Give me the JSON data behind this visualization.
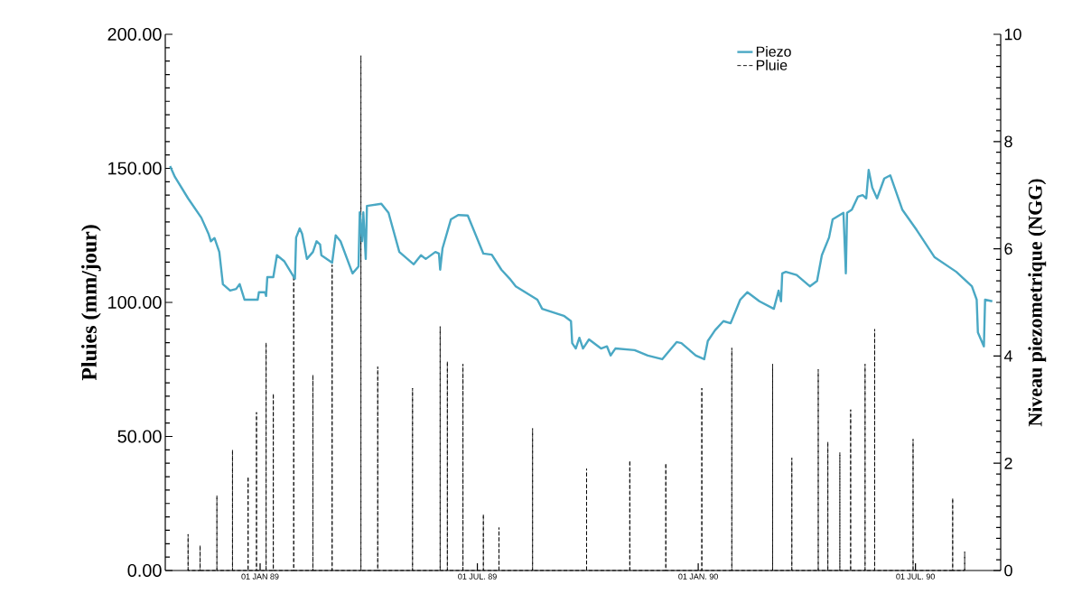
{
  "chart_data": {
    "type": "line",
    "xlabel": null,
    "ylabel": "Pluies (mm/jour)",
    "y2label": "Niveau piezometrique (NGG)",
    "xlim": [
      "1988-10-14",
      "1990-09-10"
    ],
    "xticks": [
      {
        "value": "1989-01-01",
        "label": "01 JAN 89"
      },
      {
        "value": "1989-07-01",
        "label": "01 JUL. 89"
      },
      {
        "value": "1990-01-01",
        "label": "01 JAN. 90"
      },
      {
        "value": "1990-07-01",
        "label": "01 JUL. 90"
      }
    ],
    "ylim": [
      0,
      200
    ],
    "yticks": [
      {
        "value": 0,
        "label": "0.00"
      },
      {
        "value": 50,
        "label": "50.00"
      },
      {
        "value": 100,
        "label": "100.00"
      },
      {
        "value": 150,
        "label": "150.00"
      },
      {
        "value": 200,
        "label": "200.00"
      }
    ],
    "y2lim": [
      0,
      10
    ],
    "y2ticks": [
      0,
      2,
      4,
      6,
      8,
      10
    ],
    "legend": "top right",
    "series": [
      {
        "name": "Piezo",
        "color": "#4aa8c4",
        "axis": "y2",
        "line_style": "solid",
        "x": [
          "1988-10-18",
          "1988-10-22",
          "1988-11-02",
          "1988-11-13",
          "1988-11-19",
          "1988-11-21",
          "1988-11-24",
          "1988-11-28",
          "1988-12-01",
          "1988-12-07",
          "1988-12-12",
          "1988-12-15",
          "1988-12-19",
          "1988-12-30",
          "1988-12-31",
          "1989-01-05",
          "1989-01-06",
          "1989-01-07",
          "1989-01-12",
          "1989-01-15",
          "1989-01-21",
          "1989-01-30",
          "1989-01-31",
          "1989-02-03",
          "1989-02-05",
          "1989-02-09",
          "1989-02-14",
          "1989-02-17",
          "1989-02-20",
          "1989-02-21",
          "1989-03-02",
          "1989-03-05",
          "1989-03-09",
          "1989-03-19",
          "1989-03-24",
          "1989-03-25",
          "1989-03-27",
          "1989-03-28",
          "1989-03-30",
          "1989-03-31",
          "1989-04-12",
          "1989-04-18",
          "1989-04-27",
          "1989-05-09",
          "1989-05-15",
          "1989-05-19",
          "1989-05-27",
          "1989-05-30",
          "1989-05-31",
          "1989-06-02",
          "1989-06-09",
          "1989-06-15",
          "1989-06-23",
          "1989-07-06",
          "1989-07-13",
          "1989-07-21",
          "1989-07-28",
          "1989-08-02",
          "1989-08-20",
          "1989-08-24",
          "1989-09-11",
          "1989-09-17",
          "1989-09-18",
          "1989-09-21",
          "1989-09-24",
          "1989-09-27",
          "1989-10-02",
          "1989-10-12",
          "1989-10-17",
          "1989-10-20",
          "1989-10-24",
          "1989-11-09",
          "1989-11-20",
          "1989-12-02",
          "1989-12-14",
          "1989-12-18",
          "1989-12-30",
          "1990-01-06",
          "1990-01-09",
          "1990-01-15",
          "1990-01-22",
          "1990-01-28",
          "1990-02-05",
          "1990-02-11",
          "1990-02-21",
          "1990-03-05",
          "1990-03-09",
          "1990-03-11",
          "1990-03-12",
          "1990-03-15",
          "1990-03-24",
          "1990-04-04",
          "1990-04-10",
          "1990-04-14",
          "1990-04-20",
          "1990-04-23",
          "1990-05-02",
          "1990-05-04",
          "1990-05-05",
          "1990-05-09",
          "1990-05-14",
          "1990-05-18",
          "1990-05-21",
          "1990-05-23",
          "1990-05-26",
          "1990-05-30",
          "1990-06-05",
          "1990-06-10",
          "1990-06-20",
          "1990-07-02",
          "1990-07-17",
          "1990-08-04",
          "1990-08-17",
          "1990-08-21",
          "1990-08-22",
          "1990-08-27",
          "1990-08-28",
          "1990-09-03"
        ],
        "values": [
          7.54,
          7.34,
          6.94,
          6.58,
          6.28,
          6.14,
          6.2,
          5.94,
          5.34,
          5.22,
          5.25,
          5.34,
          5.05,
          5.05,
          5.19,
          5.19,
          5.12,
          5.47,
          5.47,
          5.88,
          5.77,
          5.44,
          6.21,
          6.38,
          6.28,
          5.81,
          5.94,
          6.14,
          6.08,
          5.88,
          5.74,
          6.25,
          6.14,
          5.54,
          5.67,
          6.68,
          6.14,
          6.68,
          5.81,
          6.8,
          6.84,
          6.67,
          5.94,
          5.71,
          5.88,
          5.81,
          5.94,
          5.91,
          5.61,
          6.01,
          6.55,
          6.63,
          6.62,
          5.91,
          5.89,
          5.61,
          5.44,
          5.3,
          5.05,
          4.88,
          4.75,
          4.65,
          4.24,
          4.14,
          4.34,
          4.14,
          4.31,
          4.14,
          4.18,
          4.01,
          4.14,
          4.11,
          4.01,
          3.94,
          4.26,
          4.24,
          4.01,
          3.94,
          4.28,
          4.48,
          4.65,
          4.61,
          5.05,
          5.19,
          5.02,
          4.88,
          5.22,
          5.02,
          5.54,
          5.57,
          5.51,
          5.3,
          5.4,
          5.88,
          6.21,
          6.55,
          6.67,
          5.54,
          6.67,
          6.73,
          6.97,
          7.0,
          6.94,
          7.47,
          7.14,
          6.94,
          7.31,
          7.37,
          6.73,
          6.35,
          5.84,
          5.57,
          5.3,
          5.05,
          4.44,
          4.18,
          5.05,
          5.02
        ]
      },
      {
        "name": "Pluie",
        "color": "#000000",
        "axis": "y",
        "line_style": "dashed",
        "x": [
          "1988-11-02",
          "1988-11-02",
          "1988-11-02",
          "1988-11-12",
          "1988-11-12",
          "1988-11-12",
          "1988-11-26",
          "1988-11-26",
          "1988-11-26",
          "1988-12-09",
          "1988-12-09",
          "1988-12-09",
          "1988-12-22",
          "1988-12-22",
          "1988-12-22",
          "1988-12-29",
          "1988-12-29",
          "1988-12-29",
          "1989-01-06",
          "1989-01-06",
          "1989-01-06",
          "1989-01-12",
          "1989-01-12",
          "1989-01-12",
          "1989-01-29",
          "1989-01-29",
          "1989-01-29",
          "1989-02-14",
          "1989-02-14",
          "1989-02-14",
          "1989-03-02",
          "1989-03-02",
          "1989-03-02",
          "1989-03-26",
          "1989-03-26",
          "1989-03-26",
          "1989-04-09",
          "1989-04-09",
          "1989-04-09",
          "1989-05-08",
          "1989-05-08",
          "1989-05-08",
          "1989-05-31",
          "1989-05-31",
          "1989-05-31",
          "1989-06-06",
          "1989-06-06",
          "1989-06-06",
          "1989-06-19",
          "1989-06-19",
          "1989-06-19",
          "1989-07-06",
          "1989-07-06",
          "1989-07-06",
          "1989-07-19",
          "1989-07-19",
          "1989-07-19",
          "1989-08-16",
          "1989-08-16",
          "1989-08-16",
          "1989-09-30",
          "1989-09-30",
          "1989-09-30",
          "1989-11-05",
          "1989-11-05",
          "1989-11-05",
          "1989-12-05",
          "1989-12-05",
          "1989-12-05",
          "1990-01-04",
          "1990-01-04",
          "1990-01-04",
          "1990-01-29",
          "1990-01-29",
          "1990-01-29",
          "1990-03-04",
          "1990-03-04",
          "1990-03-04",
          "1990-03-20",
          "1990-03-20",
          "1990-03-20",
          "1990-04-11",
          "1990-04-11",
          "1990-04-11",
          "1990-04-19",
          "1990-04-19",
          "1990-04-19",
          "1990-04-29",
          "1990-04-29",
          "1990-04-29",
          "1990-05-08",
          "1990-05-08",
          "1990-05-08",
          "1990-05-20",
          "1990-05-20",
          "1990-05-20",
          "1990-05-28",
          "1990-05-28",
          "1990-05-28",
          "1990-06-29",
          "1990-06-29",
          "1990-06-29",
          "1990-08-01",
          "1990-08-01",
          "1990-08-01",
          "1990-08-11",
          "1990-08-11",
          "1990-08-11"
        ],
        "values": [
          0,
          13.5,
          0,
          0,
          9.4,
          0,
          0,
          28,
          0,
          0,
          45,
          0,
          0,
          35,
          0,
          0,
          59,
          0,
          0,
          85,
          0,
          0,
          66,
          0,
          0,
          110,
          0,
          0,
          73,
          0,
          0,
          114,
          0,
          0,
          192,
          0,
          0,
          76,
          0,
          0,
          68,
          0,
          0,
          91,
          0,
          0,
          78,
          0,
          0,
          77,
          0,
          0,
          21,
          0,
          0,
          16,
          0,
          0,
          53,
          0,
          0,
          38,
          0,
          0,
          41,
          0,
          0,
          40,
          0,
          0,
          68,
          0,
          0,
          83,
          0,
          0,
          77,
          0,
          0,
          42,
          0,
          0,
          75,
          0,
          0,
          48,
          0,
          0,
          44,
          0,
          0,
          60,
          0,
          0,
          77,
          0,
          0,
          90,
          0,
          0,
          49,
          0,
          0,
          27,
          0,
          0,
          7,
          0
        ]
      }
    ]
  }
}
